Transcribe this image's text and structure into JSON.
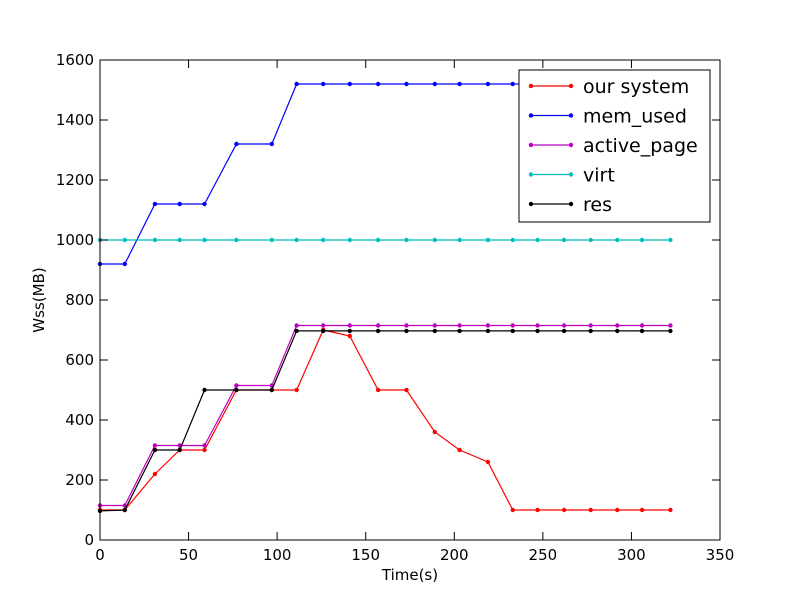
{
  "chart_data": {
    "type": "line",
    "title": "",
    "xlabel": "Time(s)",
    "ylabel": "Wss(MB)",
    "xlim": [
      0,
      350
    ],
    "ylim": [
      0,
      1600
    ],
    "xticks": [
      0,
      50,
      100,
      150,
      200,
      250,
      300,
      350
    ],
    "yticks": [
      0,
      200,
      400,
      600,
      800,
      1000,
      1200,
      1400,
      1600
    ],
    "grid": false,
    "legend_position": "top-right",
    "series": [
      {
        "name": "our system",
        "color": "#ff0000",
        "x": [
          0,
          14,
          31,
          45,
          59,
          77,
          97,
          111,
          126,
          141,
          157,
          173,
          189,
          203,
          219,
          233,
          247,
          262,
          277,
          292,
          306,
          322
        ],
        "y": [
          100,
          100,
          220,
          300,
          300,
          500,
          500,
          500,
          700,
          680,
          500,
          500,
          360,
          300,
          260,
          100,
          100,
          100,
          100,
          100,
          100,
          100
        ]
      },
      {
        "name": "mem_used",
        "color": "#0000ff",
        "x": [
          0,
          14,
          31,
          45,
          59,
          77,
          97,
          111,
          126,
          141,
          157,
          173,
          189,
          203,
          219,
          233,
          247,
          262,
          277,
          292,
          306,
          322
        ],
        "y": [
          920,
          920,
          1120,
          1120,
          1120,
          1320,
          1320,
          1520,
          1520,
          1520,
          1520,
          1520,
          1520,
          1520,
          1520,
          1520,
          1520,
          1520,
          1520,
          1520,
          1520,
          1520
        ]
      },
      {
        "name": "active_page",
        "color": "#bf00bf",
        "x": [
          0,
          14,
          31,
          45,
          59,
          77,
          97,
          111,
          126,
          141,
          157,
          173,
          189,
          203,
          219,
          233,
          247,
          262,
          277,
          292,
          306,
          322
        ],
        "y": [
          115,
          115,
          315,
          315,
          315,
          515,
          515,
          715,
          715,
          715,
          715,
          715,
          715,
          715,
          715,
          715,
          715,
          715,
          715,
          715,
          715,
          715
        ]
      },
      {
        "name": "virt",
        "color": "#00bfbf",
        "x": [
          0,
          14,
          31,
          45,
          59,
          77,
          97,
          111,
          126,
          141,
          157,
          173,
          189,
          203,
          219,
          233,
          247,
          262,
          277,
          292,
          306,
          322
        ],
        "y": [
          1000,
          1000,
          1000,
          1000,
          1000,
          1000,
          1000,
          1000,
          1000,
          1000,
          1000,
          1000,
          1000,
          1000,
          1000,
          1000,
          1000,
          1000,
          1000,
          1000,
          1000,
          1000
        ]
      },
      {
        "name": "res",
        "color": "#000000",
        "x": [
          0,
          14,
          31,
          45,
          59,
          77,
          97,
          111,
          126,
          141,
          157,
          173,
          189,
          203,
          219,
          233,
          247,
          262,
          277,
          292,
          306,
          322
        ],
        "y": [
          97,
          100,
          300,
          300,
          500,
          500,
          500,
          697,
          697,
          697,
          697,
          697,
          697,
          697,
          697,
          697,
          697,
          697,
          697,
          697,
          697,
          697
        ]
      }
    ]
  }
}
